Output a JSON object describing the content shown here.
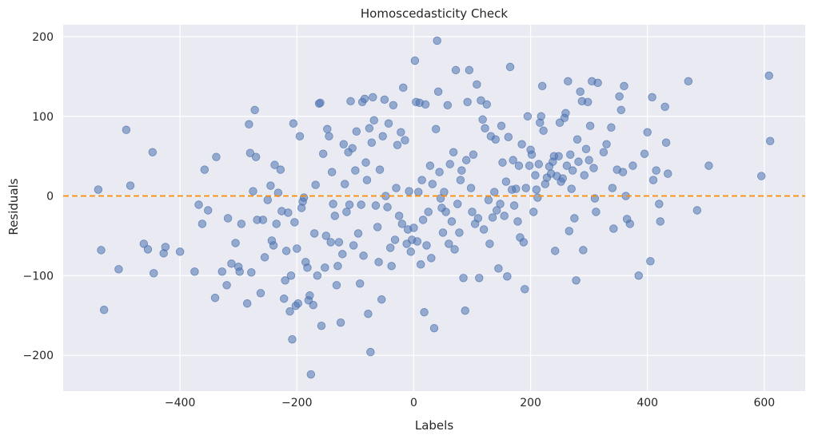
{
  "chart_data": {
    "type": "scatter",
    "title": "Homoscedasticity Check",
    "xlabel": "Labels",
    "ylabel": "Residuals",
    "xlim": [
      -600,
      670
    ],
    "ylim": [
      -245,
      215
    ],
    "xticks": [
      -400,
      -200,
      0,
      200,
      400,
      600
    ],
    "yticks": [
      -200,
      -100,
      0,
      100,
      200
    ],
    "xtick_labels": [
      "−400",
      "−200",
      "0",
      "200",
      "400",
      "600"
    ],
    "ytick_labels": [
      "−200",
      "−100",
      "0",
      "100",
      "200"
    ],
    "grid": true,
    "background": "#eaeaf2",
    "point_color": "#4c72b0",
    "point_opacity": 0.55,
    "reference_line": {
      "y": 0,
      "style": "dashed",
      "color": "#ff8c00"
    },
    "points": [
      [
        -540,
        8
      ],
      [
        -535,
        -68
      ],
      [
        -530,
        -143
      ],
      [
        -505,
        -92
      ],
      [
        -492,
        83
      ],
      [
        -485,
        13
      ],
      [
        -462,
        -60
      ],
      [
        -455,
        -67
      ],
      [
        -447,
        55
      ],
      [
        -445,
        -97
      ],
      [
        -428,
        -72
      ],
      [
        -425,
        -64
      ],
      [
        -400,
        -70
      ],
      [
        -375,
        -95
      ],
      [
        -368,
        -11
      ],
      [
        -362,
        -35
      ],
      [
        -358,
        33
      ],
      [
        -352,
        -18
      ],
      [
        -340,
        -128
      ],
      [
        -338,
        49
      ],
      [
        -328,
        -95
      ],
      [
        -320,
        -112
      ],
      [
        -318,
        -28
      ],
      [
        -312,
        -85
      ],
      [
        -305,
        -59
      ],
      [
        -300,
        -89
      ],
      [
        -298,
        -95
      ],
      [
        -295,
        -35
      ],
      [
        -285,
        -135
      ],
      [
        -282,
        90
      ],
      [
        -280,
        54
      ],
      [
        -278,
        -96
      ],
      [
        -275,
        6
      ],
      [
        -272,
        108
      ],
      [
        -270,
        49
      ],
      [
        -268,
        -30
      ],
      [
        -262,
        -122
      ],
      [
        -258,
        -30
      ],
      [
        -255,
        -77
      ],
      [
        -250,
        -5
      ],
      [
        -245,
        13
      ],
      [
        -243,
        -56
      ],
      [
        -240,
        -62
      ],
      [
        -238,
        39
      ],
      [
        -235,
        -35
      ],
      [
        -232,
        4
      ],
      [
        -228,
        33
      ],
      [
        -226,
        -19
      ],
      [
        -220,
        -106
      ],
      [
        -222,
        -129
      ],
      [
        -218,
        -69
      ],
      [
        -215,
        -21
      ],
      [
        -212,
        -145
      ],
      [
        -210,
        -100
      ],
      [
        -208,
        -180
      ],
      [
        -206,
        91
      ],
      [
        -204,
        -33
      ],
      [
        -202,
        -138
      ],
      [
        -200,
        -66
      ],
      [
        -198,
        -135
      ],
      [
        -195,
        75
      ],
      [
        -192,
        -15
      ],
      [
        -190,
        -7
      ],
      [
        -188,
        -2
      ],
      [
        -185,
        -83
      ],
      [
        -182,
        -90
      ],
      [
        -180,
        -131
      ],
      [
        -178,
        -125
      ],
      [
        -176,
        -224
      ],
      [
        -172,
        -137
      ],
      [
        -170,
        -47
      ],
      [
        -168,
        14
      ],
      [
        -165,
        -100
      ],
      [
        -162,
        116
      ],
      [
        -160,
        117
      ],
      [
        -158,
        -163
      ],
      [
        -155,
        53
      ],
      [
        -152,
        -90
      ],
      [
        -150,
        -50
      ],
      [
        -148,
        84
      ],
      [
        -145,
        75
      ],
      [
        -142,
        -58
      ],
      [
        -140,
        30
      ],
      [
        -138,
        -10
      ],
      [
        -135,
        -25
      ],
      [
        -132,
        -112
      ],
      [
        -130,
        -88
      ],
      [
        -128,
        -58
      ],
      [
        -125,
        -159
      ],
      [
        -122,
        -73
      ],
      [
        -120,
        65
      ],
      [
        -118,
        15
      ],
      [
        -115,
        -20
      ],
      [
        -112,
        55
      ],
      [
        -110,
        -11
      ],
      [
        -108,
        119
      ],
      [
        -105,
        60
      ],
      [
        -103,
        -62
      ],
      [
        -100,
        32
      ],
      [
        -98,
        81
      ],
      [
        -95,
        -47
      ],
      [
        -92,
        -110
      ],
      [
        -90,
        -11
      ],
      [
        -88,
        118
      ],
      [
        -86,
        -75
      ],
      [
        -84,
        122
      ],
      [
        -82,
        42
      ],
      [
        -80,
        20
      ],
      [
        -78,
        -148
      ],
      [
        -76,
        85
      ],
      [
        -74,
        -196
      ],
      [
        -72,
        67
      ],
      [
        -70,
        124
      ],
      [
        -68,
        95
      ],
      [
        -65,
        -12
      ],
      [
        -62,
        -39
      ],
      [
        -60,
        -83
      ],
      [
        -58,
        33
      ],
      [
        -55,
        -130
      ],
      [
        -53,
        75
      ],
      [
        -50,
        121
      ],
      [
        -48,
        0
      ],
      [
        -45,
        -14
      ],
      [
        -43,
        91
      ],
      [
        -40,
        -65
      ],
      [
        -38,
        -88
      ],
      [
        -35,
        114
      ],
      [
        -32,
        -55
      ],
      [
        -30,
        10
      ],
      [
        -28,
        64
      ],
      [
        -25,
        -25
      ],
      [
        -22,
        80
      ],
      [
        -20,
        -35
      ],
      [
        -18,
        136
      ],
      [
        -15,
        70
      ],
      [
        -12,
        -60
      ],
      [
        -10,
        -42
      ],
      [
        -8,
        6
      ],
      [
        -5,
        -70
      ],
      [
        -3,
        -55
      ],
      [
        0,
        -40
      ],
      [
        2,
        170
      ],
      [
        4,
        118
      ],
      [
        6,
        -57
      ],
      [
        8,
        5
      ],
      [
        10,
        117
      ],
      [
        12,
        -86
      ],
      [
        14,
        20
      ],
      [
        16,
        -30
      ],
      [
        18,
        -146
      ],
      [
        20,
        115
      ],
      [
        22,
        -62
      ],
      [
        25,
        -20
      ],
      [
        28,
        38
      ],
      [
        30,
        -78
      ],
      [
        32,
        15
      ],
      [
        35,
        -166
      ],
      [
        38,
        84
      ],
      [
        40,
        195
      ],
      [
        42,
        131
      ],
      [
        44,
        30
      ],
      [
        46,
        -3
      ],
      [
        48,
        -15
      ],
      [
        50,
        -46
      ],
      [
        52,
        5
      ],
      [
        55,
        -20
      ],
      [
        58,
        114
      ],
      [
        60,
        -60
      ],
      [
        62,
        40
      ],
      [
        65,
        -32
      ],
      [
        68,
        55
      ],
      [
        70,
        -67
      ],
      [
        72,
        158
      ],
      [
        75,
        -10
      ],
      [
        78,
        -46
      ],
      [
        80,
        20
      ],
      [
        82,
        32
      ],
      [
        85,
        -103
      ],
      [
        88,
        -144
      ],
      [
        90,
        45
      ],
      [
        92,
        118
      ],
      [
        95,
        158
      ],
      [
        98,
        10
      ],
      [
        100,
        -20
      ],
      [
        102,
        52
      ],
      [
        105,
        -35
      ],
      [
        108,
        140
      ],
      [
        110,
        -28
      ],
      [
        112,
        -103
      ],
      [
        115,
        120
      ],
      [
        118,
        96
      ],
      [
        120,
        -42
      ],
      [
        122,
        85
      ],
      [
        125,
        115
      ],
      [
        128,
        -5
      ],
      [
        130,
        -60
      ],
      [
        132,
        75
      ],
      [
        135,
        -27
      ],
      [
        138,
        5
      ],
      [
        140,
        71
      ],
      [
        142,
        -18
      ],
      [
        145,
        -91
      ],
      [
        148,
        -10
      ],
      [
        150,
        88
      ],
      [
        152,
        42
      ],
      [
        155,
        -25
      ],
      [
        158,
        18
      ],
      [
        160,
        -101
      ],
      [
        162,
        74
      ],
      [
        165,
        162
      ],
      [
        168,
        8
      ],
      [
        170,
        45
      ],
      [
        172,
        -12
      ],
      [
        175,
        9
      ],
      [
        178,
        -32
      ],
      [
        180,
        38
      ],
      [
        182,
        -52
      ],
      [
        185,
        65
      ],
      [
        188,
        -58
      ],
      [
        190,
        -117
      ],
      [
        192,
        10
      ],
      [
        195,
        100
      ],
      [
        198,
        38
      ],
      [
        200,
        58
      ],
      [
        202,
        52
      ],
      [
        205,
        -20
      ],
      [
        208,
        26
      ],
      [
        210,
        8
      ],
      [
        212,
        -2
      ],
      [
        214,
        40
      ],
      [
        216,
        92
      ],
      [
        218,
        100
      ],
      [
        220,
        138
      ],
      [
        222,
        82
      ],
      [
        225,
        15
      ],
      [
        228,
        23
      ],
      [
        232,
        37
      ],
      [
        235,
        28
      ],
      [
        238,
        43
      ],
      [
        240,
        50
      ],
      [
        242,
        -69
      ],
      [
        245,
        25
      ],
      [
        248,
        50
      ],
      [
        250,
        92
      ],
      [
        252,
        18
      ],
      [
        255,
        22
      ],
      [
        258,
        98
      ],
      [
        260,
        104
      ],
      [
        262,
        38
      ],
      [
        264,
        144
      ],
      [
        266,
        -44
      ],
      [
        268,
        52
      ],
      [
        270,
        9
      ],
      [
        272,
        32
      ],
      [
        275,
        -28
      ],
      [
        278,
        -106
      ],
      [
        280,
        71
      ],
      [
        282,
        43
      ],
      [
        285,
        131
      ],
      [
        288,
        119
      ],
      [
        290,
        -68
      ],
      [
        292,
        26
      ],
      [
        295,
        59
      ],
      [
        298,
        118
      ],
      [
        300,
        45
      ],
      [
        302,
        88
      ],
      [
        305,
        144
      ],
      [
        308,
        35
      ],
      [
        310,
        -3
      ],
      [
        312,
        -20
      ],
      [
        315,
        142
      ],
      [
        325,
        55
      ],
      [
        330,
        65
      ],
      [
        338,
        86
      ],
      [
        340,
        10
      ],
      [
        342,
        -41
      ],
      [
        348,
        33
      ],
      [
        352,
        125
      ],
      [
        355,
        108
      ],
      [
        358,
        30
      ],
      [
        360,
        138
      ],
      [
        363,
        0
      ],
      [
        365,
        -29
      ],
      [
        370,
        -35
      ],
      [
        375,
        38
      ],
      [
        385,
        -100
      ],
      [
        395,
        53
      ],
      [
        400,
        80
      ],
      [
        405,
        -82
      ],
      [
        408,
        124
      ],
      [
        410,
        20
      ],
      [
        415,
        32
      ],
      [
        420,
        -10
      ],
      [
        422,
        -32
      ],
      [
        430,
        112
      ],
      [
        432,
        67
      ],
      [
        435,
        28
      ],
      [
        470,
        144
      ],
      [
        485,
        -18
      ],
      [
        505,
        38
      ],
      [
        595,
        25
      ],
      [
        608,
        151
      ],
      [
        610,
        69
      ]
    ]
  }
}
